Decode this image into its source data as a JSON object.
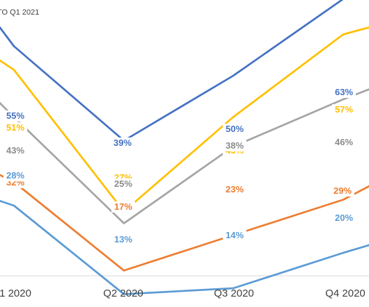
{
  "chart_data": {
    "type": "line",
    "title": "TO Q1 2021",
    "categories": [
      "1 2020",
      "Q2 2020",
      "Q3 2020",
      "Q4 2020"
    ],
    "series": [
      {
        "color": "#4472C4",
        "values": [
          55,
          39,
          50,
          63
        ],
        "labels": [
          "55%",
          "39%",
          "50%",
          "63%"
        ]
      },
      {
        "color": "#FFC000",
        "values": [
          51,
          27,
          43,
          57
        ],
        "labels": [
          "51%",
          "27%",
          "43%",
          "57%"
        ]
      },
      {
        "color": "#A5A5A5",
        "values": [
          43,
          25,
          38,
          46
        ],
        "labels": [
          "43%",
          "25%",
          "38%",
          "46%"
        ]
      },
      {
        "color": "#ED7D31",
        "values": [
          32,
          17,
          23,
          29
        ],
        "labels": [
          "32%",
          "17%",
          "23%",
          "29%"
        ]
      },
      {
        "color": "#5B9BD5",
        "values": [
          28,
          13,
          14,
          20
        ],
        "labels": [
          "28%",
          "13%",
          "14%",
          "20%"
        ]
      }
    ],
    "grid": false,
    "legend": "none"
  }
}
